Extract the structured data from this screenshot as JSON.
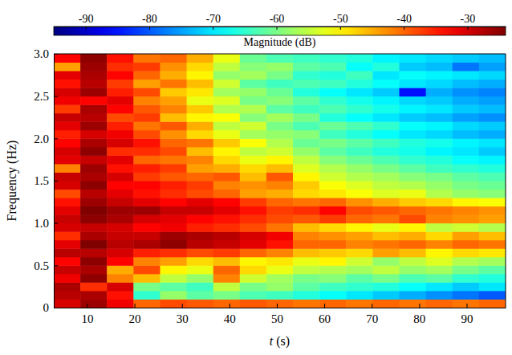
{
  "chart_data": {
    "type": "heatmap",
    "x_label": "t (s)",
    "y_label": "Frequency (Hz)",
    "color": "jet",
    "xlim": [
      3,
      98.2
    ],
    "ylim": [
      0,
      3
    ],
    "xticks": [
      10,
      20,
      30,
      40,
      50,
      60,
      70,
      80,
      90
    ],
    "yticks": [
      0,
      0.5,
      {
        "value": 1,
        "label": "1.0"
      },
      1.5,
      {
        "value": 2,
        "label": "2.0"
      },
      2.5,
      {
        "value": 3,
        "label": "3.0"
      }
    ],
    "x_edges": [
      3,
      8.6,
      14.2,
      19.8,
      25.4,
      31,
      36.6,
      42.2,
      47.8,
      53.4,
      59,
      64.6,
      70.2,
      75.8,
      81.4,
      87,
      92.6,
      98.2
    ],
    "y_edges": [
      0,
      0.1,
      0.2,
      0.3,
      0.4,
      0.5,
      0.6,
      0.7,
      0.8,
      0.9,
      1,
      1.1,
      1.2,
      1.3,
      1.4,
      1.5,
      1.6,
      1.7,
      1.8,
      1.9,
      2,
      2.1,
      2.2,
      2.3,
      2.4,
      2.5,
      2.6,
      2.7,
      2.8,
      2.9,
      3
    ],
    "values": [
      [
        -30,
        -28,
        -27,
        -32,
        -29,
        -33,
        -28,
        -31,
        -36,
        -30,
        -29,
        -31,
        -34,
        -38,
        -30,
        -29,
        -42,
        -31,
        -30,
        -33,
        -35,
        -31,
        -29,
        -37,
        -32,
        -30,
        -34,
        -31,
        -44,
        -33
      ],
      [
        -26,
        -27,
        -36,
        -25,
        -27,
        -25,
        -28,
        -24,
        -27,
        -29,
        -25,
        -24,
        -26,
        -28,
        -25,
        -27,
        -26,
        -29,
        -25,
        -27,
        -30,
        -26,
        -28,
        -27,
        -33,
        -26,
        -28,
        -27,
        -26,
        -25
      ],
      [
        -32,
        -34,
        -30,
        -42,
        -45,
        -33,
        -30,
        -28,
        -29,
        -30,
        -27,
        -26,
        -29,
        -31,
        -33,
        -30,
        -34,
        -31,
        -36,
        -30,
        -32,
        -35,
        -38,
        -33,
        -31,
        -35,
        -37,
        -33,
        -36,
        -34
      ],
      [
        -40,
        -65,
        -60,
        -46,
        -38,
        -42,
        -35,
        -27,
        -29,
        -33,
        -30,
        -26,
        -31,
        -34,
        -33,
        -37,
        -35,
        -40,
        -36,
        -34,
        -38,
        -41,
        -37,
        -39,
        -42,
        -38,
        -44,
        -40,
        -37,
        -41
      ],
      [
        -38,
        -58,
        -62,
        -55,
        -50,
        -44,
        -36,
        -25,
        -26,
        -32,
        -31,
        -29,
        -33,
        -36,
        -35,
        -39,
        -37,
        -41,
        -38,
        -40,
        -43,
        -39,
        -46,
        -42,
        -44,
        -47,
        -41,
        -45,
        -43,
        -40
      ],
      [
        -39,
        -62,
        -64,
        -58,
        -52,
        -48,
        -38,
        -28,
        -27,
        -35,
        -33,
        -29,
        -31,
        -38,
        -37,
        -40,
        -44,
        -42,
        -46,
        -41,
        -48,
        -45,
        -50,
        -47,
        -52,
        -49,
        -46,
        -50,
        -48,
        -45
      ],
      [
        -40,
        -60,
        -55,
        -42,
        -40,
        -46,
        -37,
        -29,
        -28,
        -36,
        -34,
        -31,
        -33,
        -40,
        -42,
        -39,
        -45,
        -48,
        -50,
        -47,
        -52,
        -55,
        -51,
        -56,
        -53,
        -57,
        -54,
        -58,
        -55,
        -52
      ],
      [
        -39,
        -63,
        -60,
        -54,
        -48,
        -50,
        -40,
        -31,
        -30,
        -38,
        -36,
        -34,
        -37,
        -44,
        -43,
        -46,
        -48,
        -52,
        -55,
        -51,
        -57,
        -54,
        -59,
        -56,
        -60,
        -58,
        -62,
        -57,
        -59,
        -61
      ],
      [
        -40,
        -64,
        -58,
        -57,
        -52,
        -49,
        -42,
        -34,
        -32,
        -41,
        -38,
        -37,
        -40,
        -45,
        -42,
        -39,
        -46,
        -50,
        -54,
        -56,
        -58,
        -60,
        -57,
        -62,
        -59,
        -61,
        -64,
        -60,
        -58,
        -63
      ],
      [
        -41,
        -66,
        -62,
        -60,
        -55,
        -52,
        -46,
        -40,
        -42,
        -46,
        -39,
        -36,
        -41,
        -48,
        -47,
        -50,
        -53,
        -55,
        -58,
        -61,
        -59,
        -63,
        -60,
        -64,
        -62,
        -66,
        -63,
        -65,
        -62,
        -64
      ],
      [
        -40,
        -68,
        -64,
        -59,
        -56,
        -50,
        -47,
        -40,
        -43,
        -48,
        -37,
        -33,
        -40,
        -49,
        -51,
        -54,
        -56,
        -59,
        -62,
        -60,
        -64,
        -61,
        -66,
        -63,
        -65,
        -68,
        -64,
        -66,
        -63,
        -65
      ],
      [
        -41,
        -70,
        -65,
        -62,
        -57,
        -54,
        -48,
        -42,
        -44,
        -50,
        -40,
        -38,
        -43,
        -51,
        -53,
        -56,
        -58,
        -61,
        -64,
        -62,
        -66,
        -63,
        -68,
        -65,
        -67,
        -70,
        -66,
        -64,
        -68,
        -66
      ],
      [
        -40,
        -72,
        -66,
        -60,
        -55,
        -58,
        -44,
        -41,
        -46,
        -52,
        -41,
        -39,
        -45,
        -53,
        -55,
        -57,
        -60,
        -63,
        -66,
        -64,
        -68,
        -65,
        -70,
        -67,
        -69,
        -72,
        -68,
        -70,
        -66,
        -69
      ],
      [
        -41,
        -74,
        -68,
        -63,
        -58,
        -55,
        -46,
        -40,
        -45,
        -50,
        -38,
        -40,
        -47,
        -52,
        -56,
        -59,
        -62,
        -65,
        -67,
        -66,
        -70,
        -68,
        -72,
        -69,
        -71,
        -85,
        -70,
        -68,
        -72,
        -70
      ],
      [
        -40,
        -76,
        -70,
        -62,
        -57,
        -53,
        -50,
        -42,
        -48,
        -55,
        -42,
        -41,
        -48,
        -56,
        -58,
        -60,
        -64,
        -66,
        -69,
        -67,
        -71,
        -69,
        -73,
        -70,
        -72,
        -74,
        -71,
        -69,
        -73,
        -71
      ],
      [
        -41,
        -78,
        -72,
        -65,
        -60,
        -56,
        -48,
        -40,
        -44,
        -54,
        -43,
        -42,
        -50,
        -58,
        -60,
        -62,
        -65,
        -68,
        -70,
        -69,
        -73,
        -71,
        -75,
        -72,
        -74,
        -76,
        -73,
        -70,
        -78,
        -72
      ],
      [
        -40,
        -80,
        -70,
        -66,
        -62,
        -57,
        -49,
        -41,
        -46,
        -56,
        -44,
        -43,
        -51,
        -59,
        -61,
        -63,
        -66,
        -69,
        -72,
        -70,
        -74,
        -72,
        -76,
        -73,
        -75,
        -77,
        -74,
        -71,
        -75,
        -73
      ]
    ],
    "colorbar": {
      "label": "Magnitude (dB)",
      "range": [
        -95,
        -24
      ],
      "ticks": [
        -90,
        -80,
        -70,
        -60,
        -50,
        -40,
        -30
      ]
    }
  }
}
